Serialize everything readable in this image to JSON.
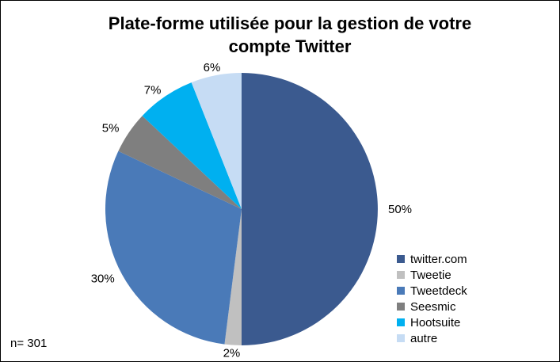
{
  "chart_data": {
    "type": "pie",
    "title": "Plate-forme utilisée pour la gestion de votre compte Twitter",
    "categories": [
      "twitter.com",
      "Tweetie",
      "Tweetdeck",
      "Seesmic",
      "Hootsuite",
      "autre"
    ],
    "values": [
      50,
      2,
      30,
      5,
      7,
      6
    ],
    "labels": [
      "50%",
      "2%",
      "30%",
      "5%",
      "7%",
      "6%"
    ],
    "colors": [
      "#3b5a8f",
      "#c0c0c0",
      "#4a7ab8",
      "#7f7f7f",
      "#00b0f0",
      "#c6dcf4"
    ],
    "start_angle": "top",
    "direction": "clockwise",
    "legend_position": "right-bottom"
  },
  "note": "n= 301"
}
